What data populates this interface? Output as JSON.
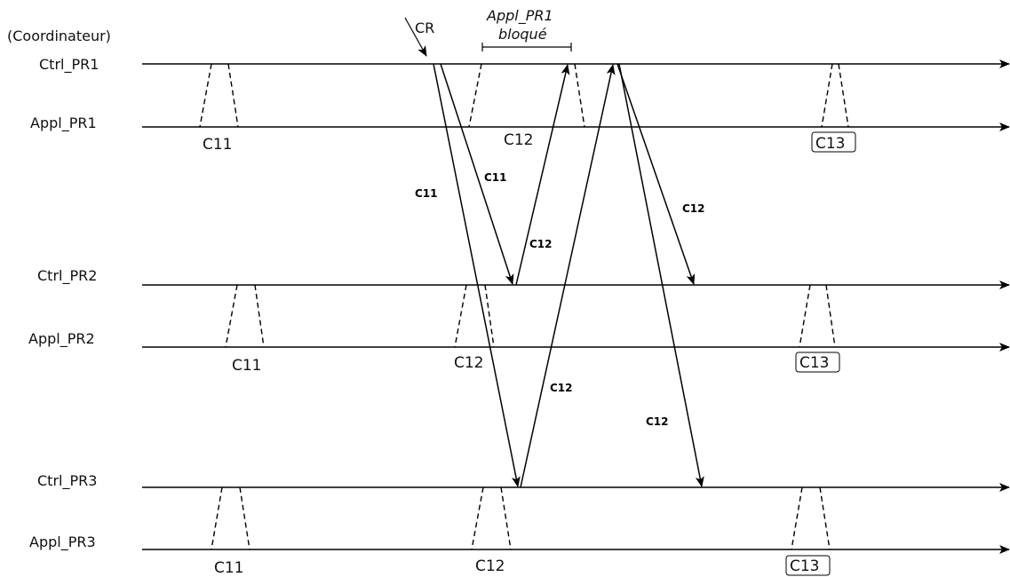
{
  "coordinator_note": "(Coordinateur)",
  "processes": [
    {
      "label": "Ctrl_PR1"
    },
    {
      "label": "Appl_PR1"
    },
    {
      "label": "Ctrl_PR2"
    },
    {
      "label": "Appl_PR2"
    },
    {
      "label": "Ctrl_PR3"
    },
    {
      "label": "Appl_PR3"
    }
  ],
  "checkpoint_labels": [
    {
      "text": "C11",
      "boxed": false
    },
    {
      "text": "C12",
      "boxed": false
    },
    {
      "text": "C13",
      "boxed": true
    },
    {
      "text": "C11",
      "boxed": false
    },
    {
      "text": "C12",
      "boxed": false
    },
    {
      "text": "C13",
      "boxed": true
    },
    {
      "text": "C11",
      "boxed": false
    },
    {
      "text": "C12",
      "boxed": false
    },
    {
      "text": "C13",
      "boxed": true
    }
  ],
  "messages": [
    {
      "label": "C11"
    },
    {
      "label": "C11"
    },
    {
      "label": "C12"
    },
    {
      "label": "C12"
    },
    {
      "label": "C12"
    },
    {
      "label": "C12"
    }
  ],
  "annotations": {
    "cr": "CR",
    "blocked_line1": "Appl_PR1",
    "blocked_line2": "bloqué"
  }
}
